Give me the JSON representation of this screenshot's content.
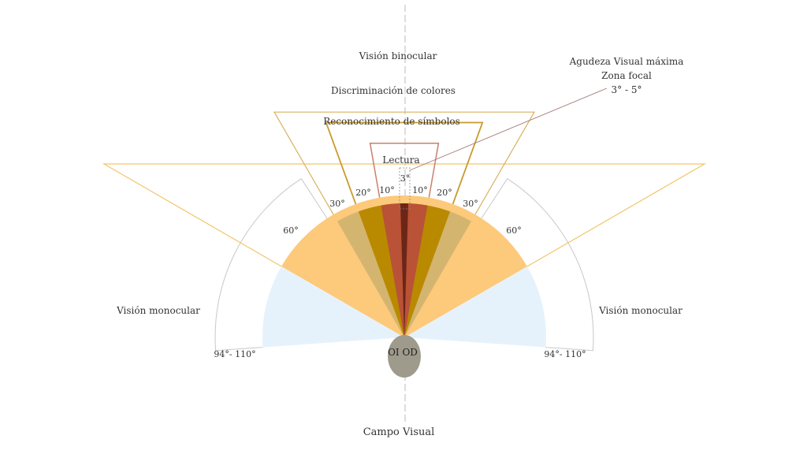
{
  "title": "Campo Visual",
  "colors": {
    "binocular": "#fdc97a",
    "monocular": "#e6f2fb",
    "sym30": "#d3b570",
    "sym20": "#b98a00",
    "read10": "#b95236",
    "focal": "#6b2617",
    "outline_binocular": "#f2c56a",
    "outline_colores": "#d8b25d",
    "outline_simbolos": "#c99a2e",
    "outline_lectura": "#c9806c",
    "outline_monocular": "#c8c8c8",
    "eye": "#9e9a8c",
    "leader": "#a37a7a",
    "axis": "#bbbbbb"
  },
  "zones": {
    "vision_binocular": "Visión binocular",
    "discriminacion_colores": "Discriminación de colores",
    "reconocimiento_simbolos": "Reconocimiento de símbolos",
    "lectura": "Lectura",
    "vision_monocular_left": "Visión monocular",
    "vision_monocular_right": "Visión monocular"
  },
  "focal_callout": {
    "line1": "Agudeza Visual máxima",
    "line2": "Zona focal",
    "line3": "3° - 5°"
  },
  "angles": {
    "three": "3°",
    "ten_left": "10°",
    "ten_right": "10°",
    "twenty_left": "20°",
    "twenty_right": "20°",
    "thirty_left": "30°",
    "thirty_right": "30°",
    "sixty_left": "60°",
    "sixty_right": "60°",
    "mono_left": "94°- 110°",
    "mono_right": "94°- 110°"
  },
  "eyes": "OI OD"
}
